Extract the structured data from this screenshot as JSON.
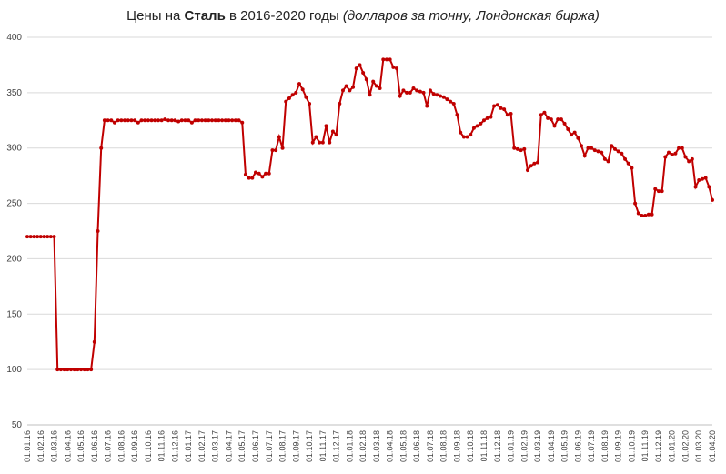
{
  "chart_data": {
    "type": "line",
    "title": {
      "pre": "Цены  на ",
      "bold": "Сталь",
      "post": " в 2016-2020 годы ",
      "italic": "(долларов за тонну, Лондонская биржа)"
    },
    "categories": [
      "01.01.16",
      null,
      null,
      null,
      "01.02.16",
      null,
      null,
      null,
      "01.03.16",
      null,
      null,
      null,
      "01.04.16",
      null,
      null,
      null,
      "01.05.16",
      null,
      null,
      null,
      "01.06.16",
      null,
      null,
      null,
      "01.07.16",
      null,
      null,
      null,
      "01.08.16",
      null,
      null,
      null,
      "01.09.16",
      null,
      null,
      null,
      "01.10.16",
      null,
      null,
      null,
      "01.11.16",
      null,
      null,
      null,
      "01.12.16",
      null,
      null,
      null,
      "01.01.17",
      null,
      null,
      null,
      "01.02.17",
      null,
      null,
      null,
      "01.03.17",
      null,
      null,
      null,
      "01.04.17",
      null,
      null,
      null,
      "01.05.17",
      null,
      null,
      null,
      "01.06.17",
      null,
      null,
      null,
      "01.07.17",
      null,
      null,
      null,
      "01.08.17",
      null,
      null,
      null,
      "01.09.17",
      null,
      null,
      null,
      "01.10.17",
      null,
      null,
      null,
      "01.11.17",
      null,
      null,
      null,
      "01.12.17",
      null,
      null,
      null,
      "01.01.18",
      null,
      null,
      null,
      "01.02.18",
      null,
      null,
      null,
      "01.03.18",
      null,
      null,
      null,
      "01.04.18",
      null,
      null,
      null,
      "01.05.18",
      null,
      null,
      null,
      "01.06.18",
      null,
      null,
      null,
      "01.07.18",
      null,
      null,
      null,
      "01.08.18",
      null,
      null,
      null,
      "01.09.18",
      null,
      null,
      null,
      "01.10.18",
      null,
      null,
      null,
      "01.11.18",
      null,
      null,
      null,
      "01.12.18",
      null,
      null,
      null,
      "01.01.19",
      null,
      null,
      null,
      "01.02.19",
      null,
      null,
      null,
      "01.03.19",
      null,
      null,
      null,
      "01.04.19",
      null,
      null,
      null,
      "01.05.19",
      null,
      null,
      null,
      "01.06.19",
      null,
      null,
      null,
      "01.07.19",
      null,
      null,
      null,
      "01.08.19",
      null,
      null,
      null,
      "01.09.19",
      null,
      null,
      null,
      "01.10.19",
      null,
      null,
      null,
      "01.11.19",
      null,
      null,
      null,
      "01.12.19",
      null,
      null,
      null,
      "01.01.20",
      null,
      null,
      null,
      "01.02.20",
      null,
      null,
      null,
      "01.03.20",
      null,
      null,
      null,
      "01.04.20"
    ],
    "values": [
      220,
      220,
      220,
      220,
      220,
      220,
      220,
      220,
      220,
      100,
      100,
      100,
      100,
      100,
      100,
      100,
      100,
      100,
      100,
      100,
      125,
      225,
      300,
      325,
      325,
      325,
      323,
      325,
      325,
      325,
      325,
      325,
      325,
      323,
      325,
      325,
      325,
      325,
      325,
      325,
      325,
      326,
      325,
      325,
      325,
      324,
      325,
      325,
      325,
      323,
      325,
      325,
      325,
      325,
      325,
      325,
      325,
      325,
      325,
      325,
      325,
      325,
      325,
      325,
      323,
      276,
      273,
      273,
      278,
      277,
      274,
      277,
      277,
      298,
      298,
      310,
      300,
      342,
      345,
      348,
      350,
      358,
      353,
      346,
      340,
      305,
      310,
      305,
      305,
      320,
      305,
      315,
      312,
      340,
      352,
      356,
      352,
      355,
      372,
      375,
      368,
      362,
      348,
      360,
      356,
      354,
      380,
      380,
      380,
      373,
      372,
      347,
      352,
      350,
      350,
      354,
      352,
      351,
      350,
      338,
      352,
      349,
      348,
      347,
      346,
      344,
      342,
      340,
      330,
      314,
      310,
      310,
      312,
      318,
      320,
      322,
      325,
      327,
      328,
      338,
      339,
      336,
      335,
      330,
      331,
      300,
      299,
      298,
      299,
      280,
      284,
      286,
      287,
      330,
      332,
      327,
      326,
      320,
      326,
      326,
      322,
      317,
      312,
      314,
      309,
      302,
      293,
      300,
      300,
      298,
      297,
      296,
      290,
      288,
      302,
      299,
      297,
      295,
      290,
      286,
      282,
      250,
      241,
      239,
      239,
      240,
      240,
      263,
      261,
      261,
      292,
      296,
      294,
      295,
      300,
      300,
      292,
      288,
      290,
      265,
      271,
      272,
      273,
      265,
      253
    ],
    "color": "#c00000",
    "ylim": [
      50,
      400
    ],
    "yticks": [
      50,
      100,
      150,
      200,
      250,
      300,
      350,
      400
    ],
    "grid": true
  }
}
